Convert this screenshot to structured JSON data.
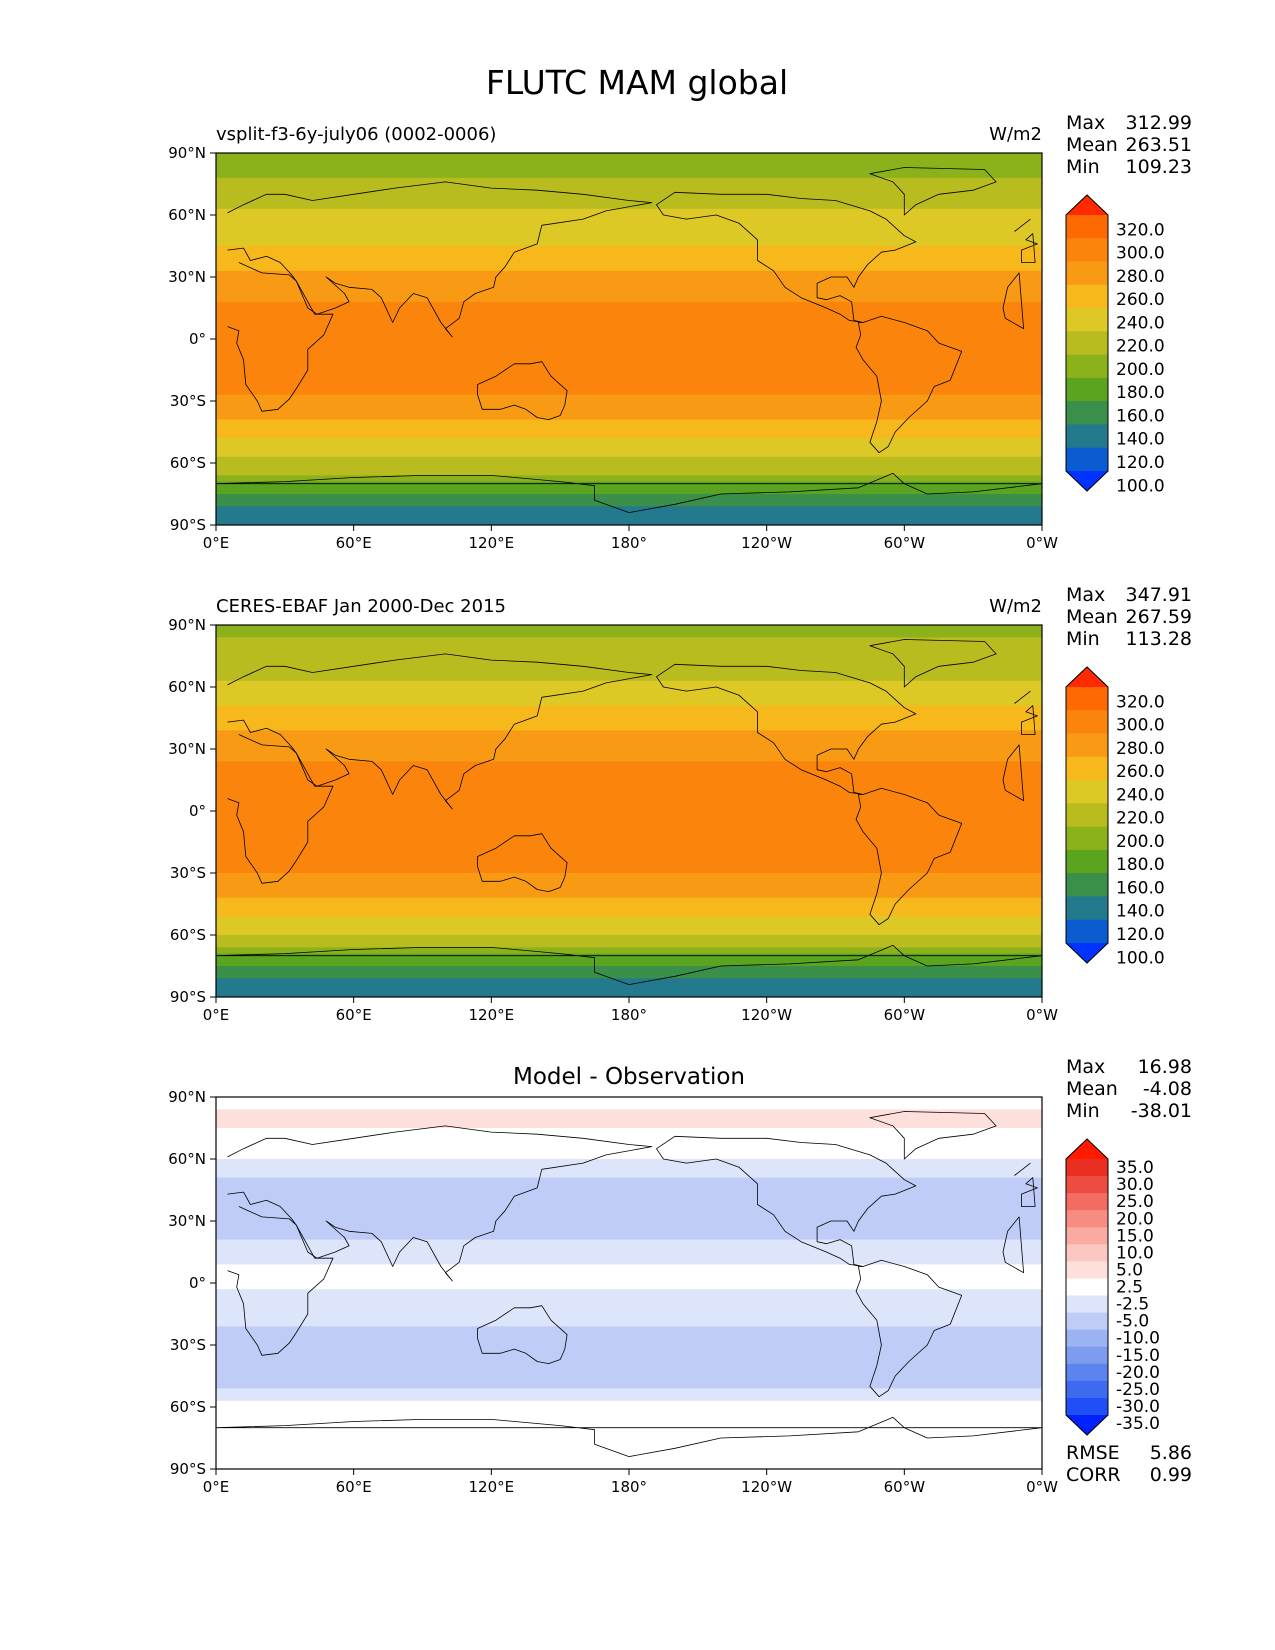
{
  "figure": {
    "title": "FLUTC MAM global"
  },
  "chart_data": [
    {
      "type": "heatmap",
      "panel": "model",
      "title": "",
      "left_label": "vsplit-f3-6y-july06 (0002-0006)",
      "units": "W/m2",
      "xlabel": "",
      "ylabel": "",
      "x_ticks": [
        "0°E",
        "60°E",
        "120°E",
        "180°",
        "120°W",
        "60°W",
        "0°W"
      ],
      "y_ticks": [
        "90°N",
        "60°N",
        "30°N",
        "0°",
        "30°S",
        "60°S",
        "90°S"
      ],
      "xlim": [
        0,
        360
      ],
      "ylim": [
        -90,
        90
      ],
      "stats": {
        "labels": [
          "Max",
          "Mean",
          "Min"
        ],
        "values": [
          "312.99",
          "263.51",
          "109.23"
        ]
      },
      "colorbar": {
        "extend": "both",
        "levels": [
          100,
          120,
          140,
          160,
          180,
          200,
          220,
          240,
          260,
          280,
          300,
          320
        ],
        "tick_labels": [
          "320.0",
          "300.0",
          "280.0",
          "260.0",
          "240.0",
          "220.0",
          "200.0",
          "180.0",
          "160.0",
          "140.0",
          "120.0",
          "100.0"
        ],
        "colors": [
          "#0033ff",
          "#0a5cd0",
          "#237a8c",
          "#3a8f4a",
          "#5aa420",
          "#8bb21a",
          "#b9bc1e",
          "#ddc826",
          "#f7b81c",
          "#f99a14",
          "#fb850c",
          "#fd6a04",
          "#ff2a00"
        ]
      },
      "zonal_profile": [
        {
          "lat": 90,
          "value": 190
        },
        {
          "lat": 75,
          "value": 202
        },
        {
          "lat": 60,
          "value": 222
        },
        {
          "lat": 45,
          "value": 240
        },
        {
          "lat": 30,
          "value": 266
        },
        {
          "lat": 15,
          "value": 285
        },
        {
          "lat": 0,
          "value": 282
        },
        {
          "lat": -15,
          "value": 285
        },
        {
          "lat": -30,
          "value": 278
        },
        {
          "lat": -45,
          "value": 250
        },
        {
          "lat": -55,
          "value": 222
        },
        {
          "lat": -65,
          "value": 205
        },
        {
          "lat": -70,
          "value": 180
        },
        {
          "lat": -78,
          "value": 145
        },
        {
          "lat": -90,
          "value": 125
        }
      ]
    },
    {
      "type": "heatmap",
      "panel": "observation",
      "title": "",
      "left_label": "CERES-EBAF Jan 2000-Dec 2015",
      "units": "W/m2",
      "xlabel": "",
      "ylabel": "",
      "x_ticks": [
        "0°E",
        "60°E",
        "120°E",
        "180°",
        "120°W",
        "60°W",
        "0°W"
      ],
      "y_ticks": [
        "90°N",
        "60°N",
        "30°N",
        "0°",
        "30°S",
        "60°S",
        "90°S"
      ],
      "xlim": [
        0,
        360
      ],
      "ylim": [
        -90,
        90
      ],
      "stats": {
        "labels": [
          "Max",
          "Mean",
          "Min"
        ],
        "values": [
          "347.91",
          "267.59",
          "113.28"
        ]
      },
      "colorbar": {
        "extend": "both",
        "levels": [
          100,
          120,
          140,
          160,
          180,
          200,
          220,
          240,
          260,
          280,
          300,
          320
        ],
        "tick_labels": [
          "320.0",
          "300.0",
          "280.0",
          "260.0",
          "240.0",
          "220.0",
          "200.0",
          "180.0",
          "160.0",
          "140.0",
          "120.0",
          "100.0"
        ],
        "colors": [
          "#0033ff",
          "#0a5cd0",
          "#237a8c",
          "#3a8f4a",
          "#5aa420",
          "#8bb21a",
          "#b9bc1e",
          "#ddc826",
          "#f7b81c",
          "#f99a14",
          "#fb850c",
          "#fd6a04",
          "#ff2a00"
        ]
      },
      "zonal_profile": [
        {
          "lat": 90,
          "value": 195
        },
        {
          "lat": 75,
          "value": 205
        },
        {
          "lat": 60,
          "value": 225
        },
        {
          "lat": 45,
          "value": 248
        },
        {
          "lat": 30,
          "value": 272
        },
        {
          "lat": 15,
          "value": 288
        },
        {
          "lat": 0,
          "value": 284
        },
        {
          "lat": -15,
          "value": 288
        },
        {
          "lat": -30,
          "value": 282
        },
        {
          "lat": -45,
          "value": 255
        },
        {
          "lat": -55,
          "value": 228
        },
        {
          "lat": -65,
          "value": 208
        },
        {
          "lat": -70,
          "value": 180
        },
        {
          "lat": -78,
          "value": 145
        },
        {
          "lat": -90,
          "value": 125
        }
      ]
    },
    {
      "type": "heatmap",
      "panel": "difference",
      "title": "Model - Observation",
      "left_label": "",
      "units": "",
      "xlabel": "",
      "ylabel": "",
      "x_ticks": [
        "0°E",
        "60°E",
        "120°E",
        "180°",
        "120°W",
        "60°W",
        "0°W"
      ],
      "y_ticks": [
        "90°N",
        "60°N",
        "30°N",
        "0°",
        "30°S",
        "60°S",
        "90°S"
      ],
      "xlim": [
        0,
        360
      ],
      "ylim": [
        -90,
        90
      ],
      "stats": {
        "labels": [
          "Max",
          "Mean",
          "Min"
        ],
        "values": [
          "16.98",
          "-4.08",
          "-38.01"
        ]
      },
      "metrics": {
        "labels": [
          "RMSE",
          "CORR"
        ],
        "values": [
          "5.86",
          "0.99"
        ]
      },
      "colorbar": {
        "extend": "both",
        "levels": [
          -35,
          -30,
          -25,
          -20,
          -15,
          -10,
          -5,
          -2.5,
          2.5,
          5,
          10,
          15,
          20,
          25,
          30,
          35
        ],
        "tick_labels": [
          "35.0",
          "30.0",
          "25.0",
          "20.0",
          "15.0",
          "10.0",
          "5.0",
          "2.5",
          "-2.5",
          "-5.0",
          "-10.0",
          "-15.0",
          "-20.0",
          "-25.0",
          "-30.0",
          "-35.0"
        ],
        "colors": [
          "#0022ff",
          "#1f4ff5",
          "#3d6aef",
          "#5c84ee",
          "#7d9cf0",
          "#9cb3f3",
          "#bfccf7",
          "#dde5fb",
          "#ffffff",
          "#fde0dc",
          "#fcc7c0",
          "#f9aaa1",
          "#f78c82",
          "#f36c62",
          "#ef4c41",
          "#ea2e22",
          "#ff1a00"
        ]
      },
      "zonal_profile": [
        {
          "lat": 90,
          "value": 1
        },
        {
          "lat": 80,
          "value": 3
        },
        {
          "lat": 70,
          "value": 2
        },
        {
          "lat": 60,
          "value": -3
        },
        {
          "lat": 45,
          "value": -6
        },
        {
          "lat": 30,
          "value": -8
        },
        {
          "lat": 15,
          "value": -3
        },
        {
          "lat": 0,
          "value": -2
        },
        {
          "lat": -15,
          "value": -4
        },
        {
          "lat": -25,
          "value": -6
        },
        {
          "lat": -40,
          "value": -7
        },
        {
          "lat": -55,
          "value": -4
        },
        {
          "lat": -65,
          "value": 2
        },
        {
          "lat": -72,
          "value": -3
        },
        {
          "lat": -80,
          "value": 0
        },
        {
          "lat": -90,
          "value": 1
        }
      ]
    }
  ]
}
